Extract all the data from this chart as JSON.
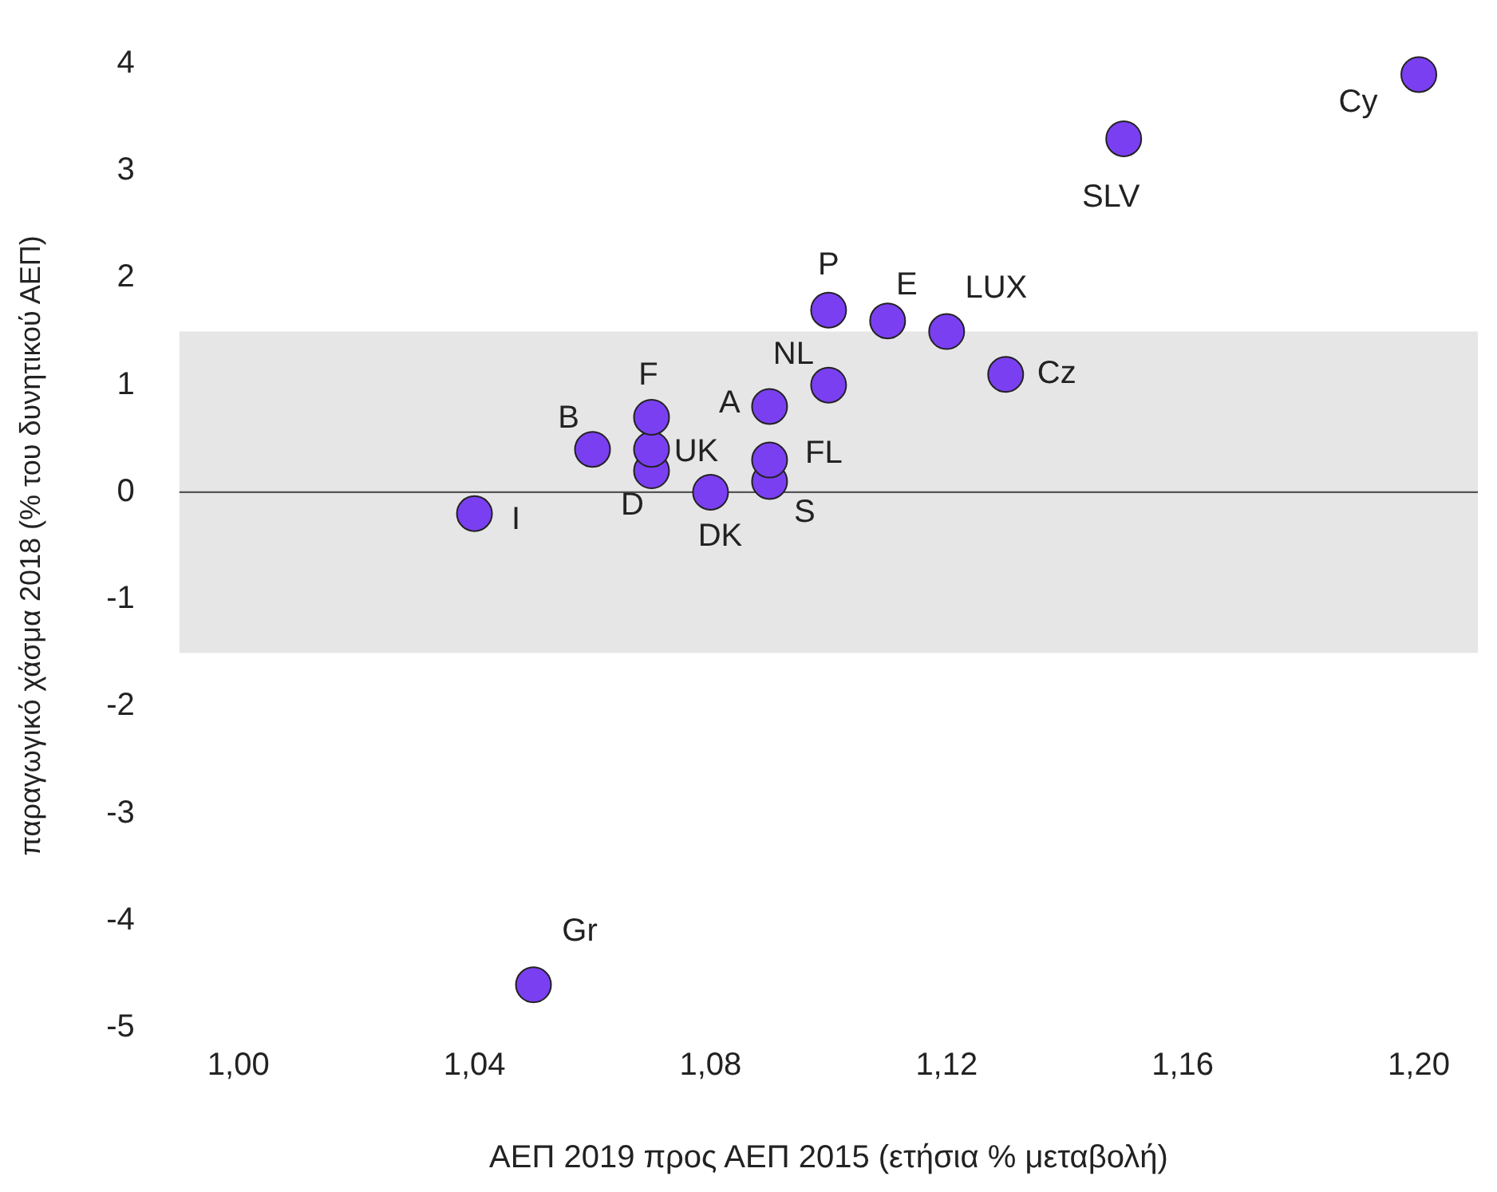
{
  "chart_data": {
    "type": "scatter",
    "xlabel": "ΑΕΠ 2019 προς ΑΕΠ 2015 (ετήσια % μεταβολή)",
    "ylabel": "παραγωγικό χάσμα 2018 (% του δυνητικού ΑΕΠ)",
    "xlim": [
      0.99,
      1.21
    ],
    "ylim": [
      -5,
      4
    ],
    "xticks": [
      {
        "value": 1.0,
        "label": "1,00"
      },
      {
        "value": 1.04,
        "label": "1,04"
      },
      {
        "value": 1.08,
        "label": "1,08"
      },
      {
        "value": 1.12,
        "label": "1,12"
      },
      {
        "value": 1.16,
        "label": "1,16"
      },
      {
        "value": 1.2,
        "label": "1,20"
      }
    ],
    "yticks": [
      -5,
      -4,
      -3,
      -2,
      -1,
      0,
      1,
      2,
      3,
      4
    ],
    "grid": false,
    "legend": false,
    "marker": "circle",
    "bands": [
      {
        "axis": "y",
        "from": -1.5,
        "to": 1.5,
        "color": "#e6e6e6"
      }
    ],
    "ref_lines": [
      {
        "axis": "y",
        "value": 0,
        "color": "#555555"
      }
    ],
    "series": [
      {
        "name": "I",
        "color": "#7b3ff2",
        "x": [
          1.04
        ],
        "values": [
          -0.2
        ]
      },
      {
        "name": "Gr",
        "color": "#7b3ff2",
        "x": [
          1.05
        ],
        "values": [
          -4.6
        ]
      },
      {
        "name": "B",
        "color": "#7b3ff2",
        "x": [
          1.06
        ],
        "values": [
          0.4
        ]
      },
      {
        "name": "F",
        "color": "#7b3ff2",
        "x": [
          1.07
        ],
        "values": [
          0.7
        ]
      },
      {
        "name": "UK",
        "color": "#7b3ff2",
        "x": [
          1.07
        ],
        "values": [
          0.4
        ]
      },
      {
        "name": "D",
        "color": "#7b3ff2",
        "x": [
          1.07
        ],
        "values": [
          0.2
        ]
      },
      {
        "name": "DK",
        "color": "#7b3ff2",
        "x": [
          1.08
        ],
        "values": [
          0.0
        ]
      },
      {
        "name": "A",
        "color": "#7b3ff2",
        "x": [
          1.09
        ],
        "values": [
          0.8
        ]
      },
      {
        "name": "FL",
        "color": "#7b3ff2",
        "x": [
          1.09
        ],
        "values": [
          0.3
        ]
      },
      {
        "name": "S",
        "color": "#7b3ff2",
        "x": [
          1.09
        ],
        "values": [
          0.1
        ]
      },
      {
        "name": "NL",
        "color": "#7b3ff2",
        "x": [
          1.1
        ],
        "values": [
          1.0
        ]
      },
      {
        "name": "P",
        "color": "#7b3ff2",
        "x": [
          1.1
        ],
        "values": [
          1.7
        ]
      },
      {
        "name": "E",
        "color": "#7b3ff2",
        "x": [
          1.11
        ],
        "values": [
          1.6
        ]
      },
      {
        "name": "LUX",
        "color": "#7b3ff2",
        "x": [
          1.12
        ],
        "values": [
          1.5
        ]
      },
      {
        "name": "Cz",
        "color": "#7b3ff2",
        "x": [
          1.13
        ],
        "values": [
          1.1
        ]
      },
      {
        "name": "SLV",
        "color": "#7b3ff2",
        "x": [
          1.15
        ],
        "values": [
          3.3
        ]
      },
      {
        "name": "Cy",
        "color": "#7b3ff2",
        "x": [
          1.2
        ],
        "values": [
          3.9
        ]
      }
    ]
  }
}
